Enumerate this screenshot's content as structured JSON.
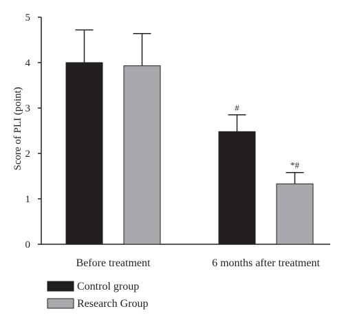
{
  "chart_data": {
    "type": "bar",
    "ylabel": "Score of PLI (point)",
    "ylim": [
      0,
      5
    ],
    "yticks": [
      "0",
      "1",
      "2",
      "3",
      "4",
      "5"
    ],
    "categories": [
      "Before treatment",
      "6 months after treatment"
    ],
    "series": [
      {
        "name": "Control group",
        "color": "#231f20",
        "values": [
          4.0,
          2.48
        ],
        "errors": [
          0.72,
          0.37
        ],
        "annotations": [
          "",
          "#"
        ]
      },
      {
        "name": "Research Group",
        "color": "#a7a9ac",
        "values": [
          3.93,
          1.33
        ],
        "errors": [
          0.71,
          0.25
        ],
        "annotations": [
          "",
          "*#"
        ]
      }
    ],
    "grid": false,
    "legend": "bottom-left"
  }
}
